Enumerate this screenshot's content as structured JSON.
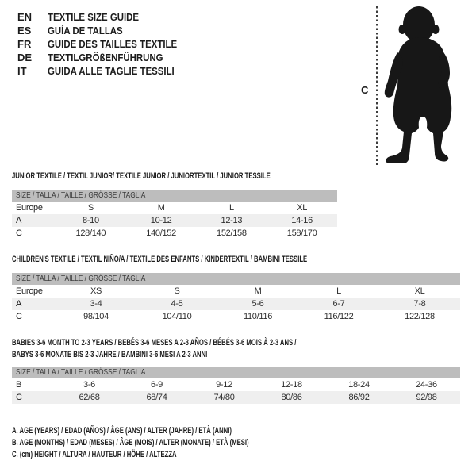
{
  "languages": [
    {
      "code": "EN",
      "label": "TEXTILE SIZE GUIDE"
    },
    {
      "code": "ES",
      "label": "GUÍA DE TALLAS"
    },
    {
      "code": "FR",
      "label": "GUIDE DES TAILLES TEXTILE"
    },
    {
      "code": "DE",
      "label": "TEXTILGRÖßENFÜHRUNG"
    },
    {
      "code": "IT",
      "label": "GUIDA ALLE TAGLIE TESSILI"
    }
  ],
  "figure": {
    "height_marker": "C"
  },
  "tables": [
    {
      "title_lines": [
        "JUNIOR TEXTILE / TEXTIL JUNIOR/ TEXTILE JUNIOR / JUNIORTEXTIL / JUNIOR TESSILE"
      ],
      "size_header": "SIZE / TALLA / TAILLE / GRÖSSE / TAGLIA",
      "rows": [
        {
          "label": "Europe",
          "values": [
            "S",
            "M",
            "L",
            "XL"
          ],
          "shaded": false
        },
        {
          "label": "A",
          "values": [
            "8-10",
            "10-12",
            "12-13",
            "14-16"
          ],
          "shaded": true
        },
        {
          "label": "C",
          "values": [
            "128/140",
            "140/152",
            "152/158",
            "158/170"
          ],
          "shaded": false
        }
      ]
    },
    {
      "title_lines": [
        "CHILDREN'S TEXTILE / TEXTIL NIÑO/A / TEXTILE DES ENFANTS / KINDERTEXTIL / BAMBINI TESSILE"
      ],
      "size_header": "SIZE / TALLA / TAILLE / GRÖSSE / TAGLIA",
      "rows": [
        {
          "label": "Europe",
          "values": [
            "XS",
            "S",
            "M",
            "L",
            "XL"
          ],
          "shaded": false
        },
        {
          "label": "A",
          "values": [
            "3-4",
            "4-5",
            "5-6",
            "6-7",
            "7-8"
          ],
          "shaded": true
        },
        {
          "label": "C",
          "values": [
            "98/104",
            "104/110",
            "110/116",
            "116/122",
            "122/128"
          ],
          "shaded": false
        }
      ]
    },
    {
      "title_lines": [
        "BABIES 3-6 MONTH TO 2-3 YEARS / BEBÉS 3-6 MESES A 2-3 AÑOS / BÉBÉS 3-6 MOIS À 2-3 ANS /",
        "BABYS 3-6 MONATE BIS 2-3 JAHRE / BAMBINI 3-6 MESI A 2-3 ANNI"
      ],
      "size_header": "SIZE / TALLA / TAILLE / GRÖSSE / TAGLIA",
      "rows": [
        {
          "label": "B",
          "values": [
            "3-6",
            "6-9",
            "9-12",
            "12-18",
            "18-24",
            "24-36"
          ],
          "shaded": false
        },
        {
          "label": "C",
          "values": [
            "62/68",
            "68/74",
            "74/80",
            "80/86",
            "86/92",
            "92/98"
          ],
          "shaded": true
        }
      ]
    }
  ],
  "footnotes": [
    "A. AGE (YEARS) / EDAD (AÑOS) / ÂGE (ANS) / ALTER (JAHRE) / ETÀ (ANNI)",
    "B. AGE (MONTHS) / EDAD (MESES) / ÂGE (MOIS) / ALTER (MONATE) / ETÀ (MESI)",
    "C. (cm) HEIGHT / ALTURA / HAUTEUR / HÖHE / ALTEZZA"
  ],
  "colors": {
    "size_bar": "#bdbdbd",
    "shaded_row": "#efefef",
    "text": "#1c1c1c"
  }
}
